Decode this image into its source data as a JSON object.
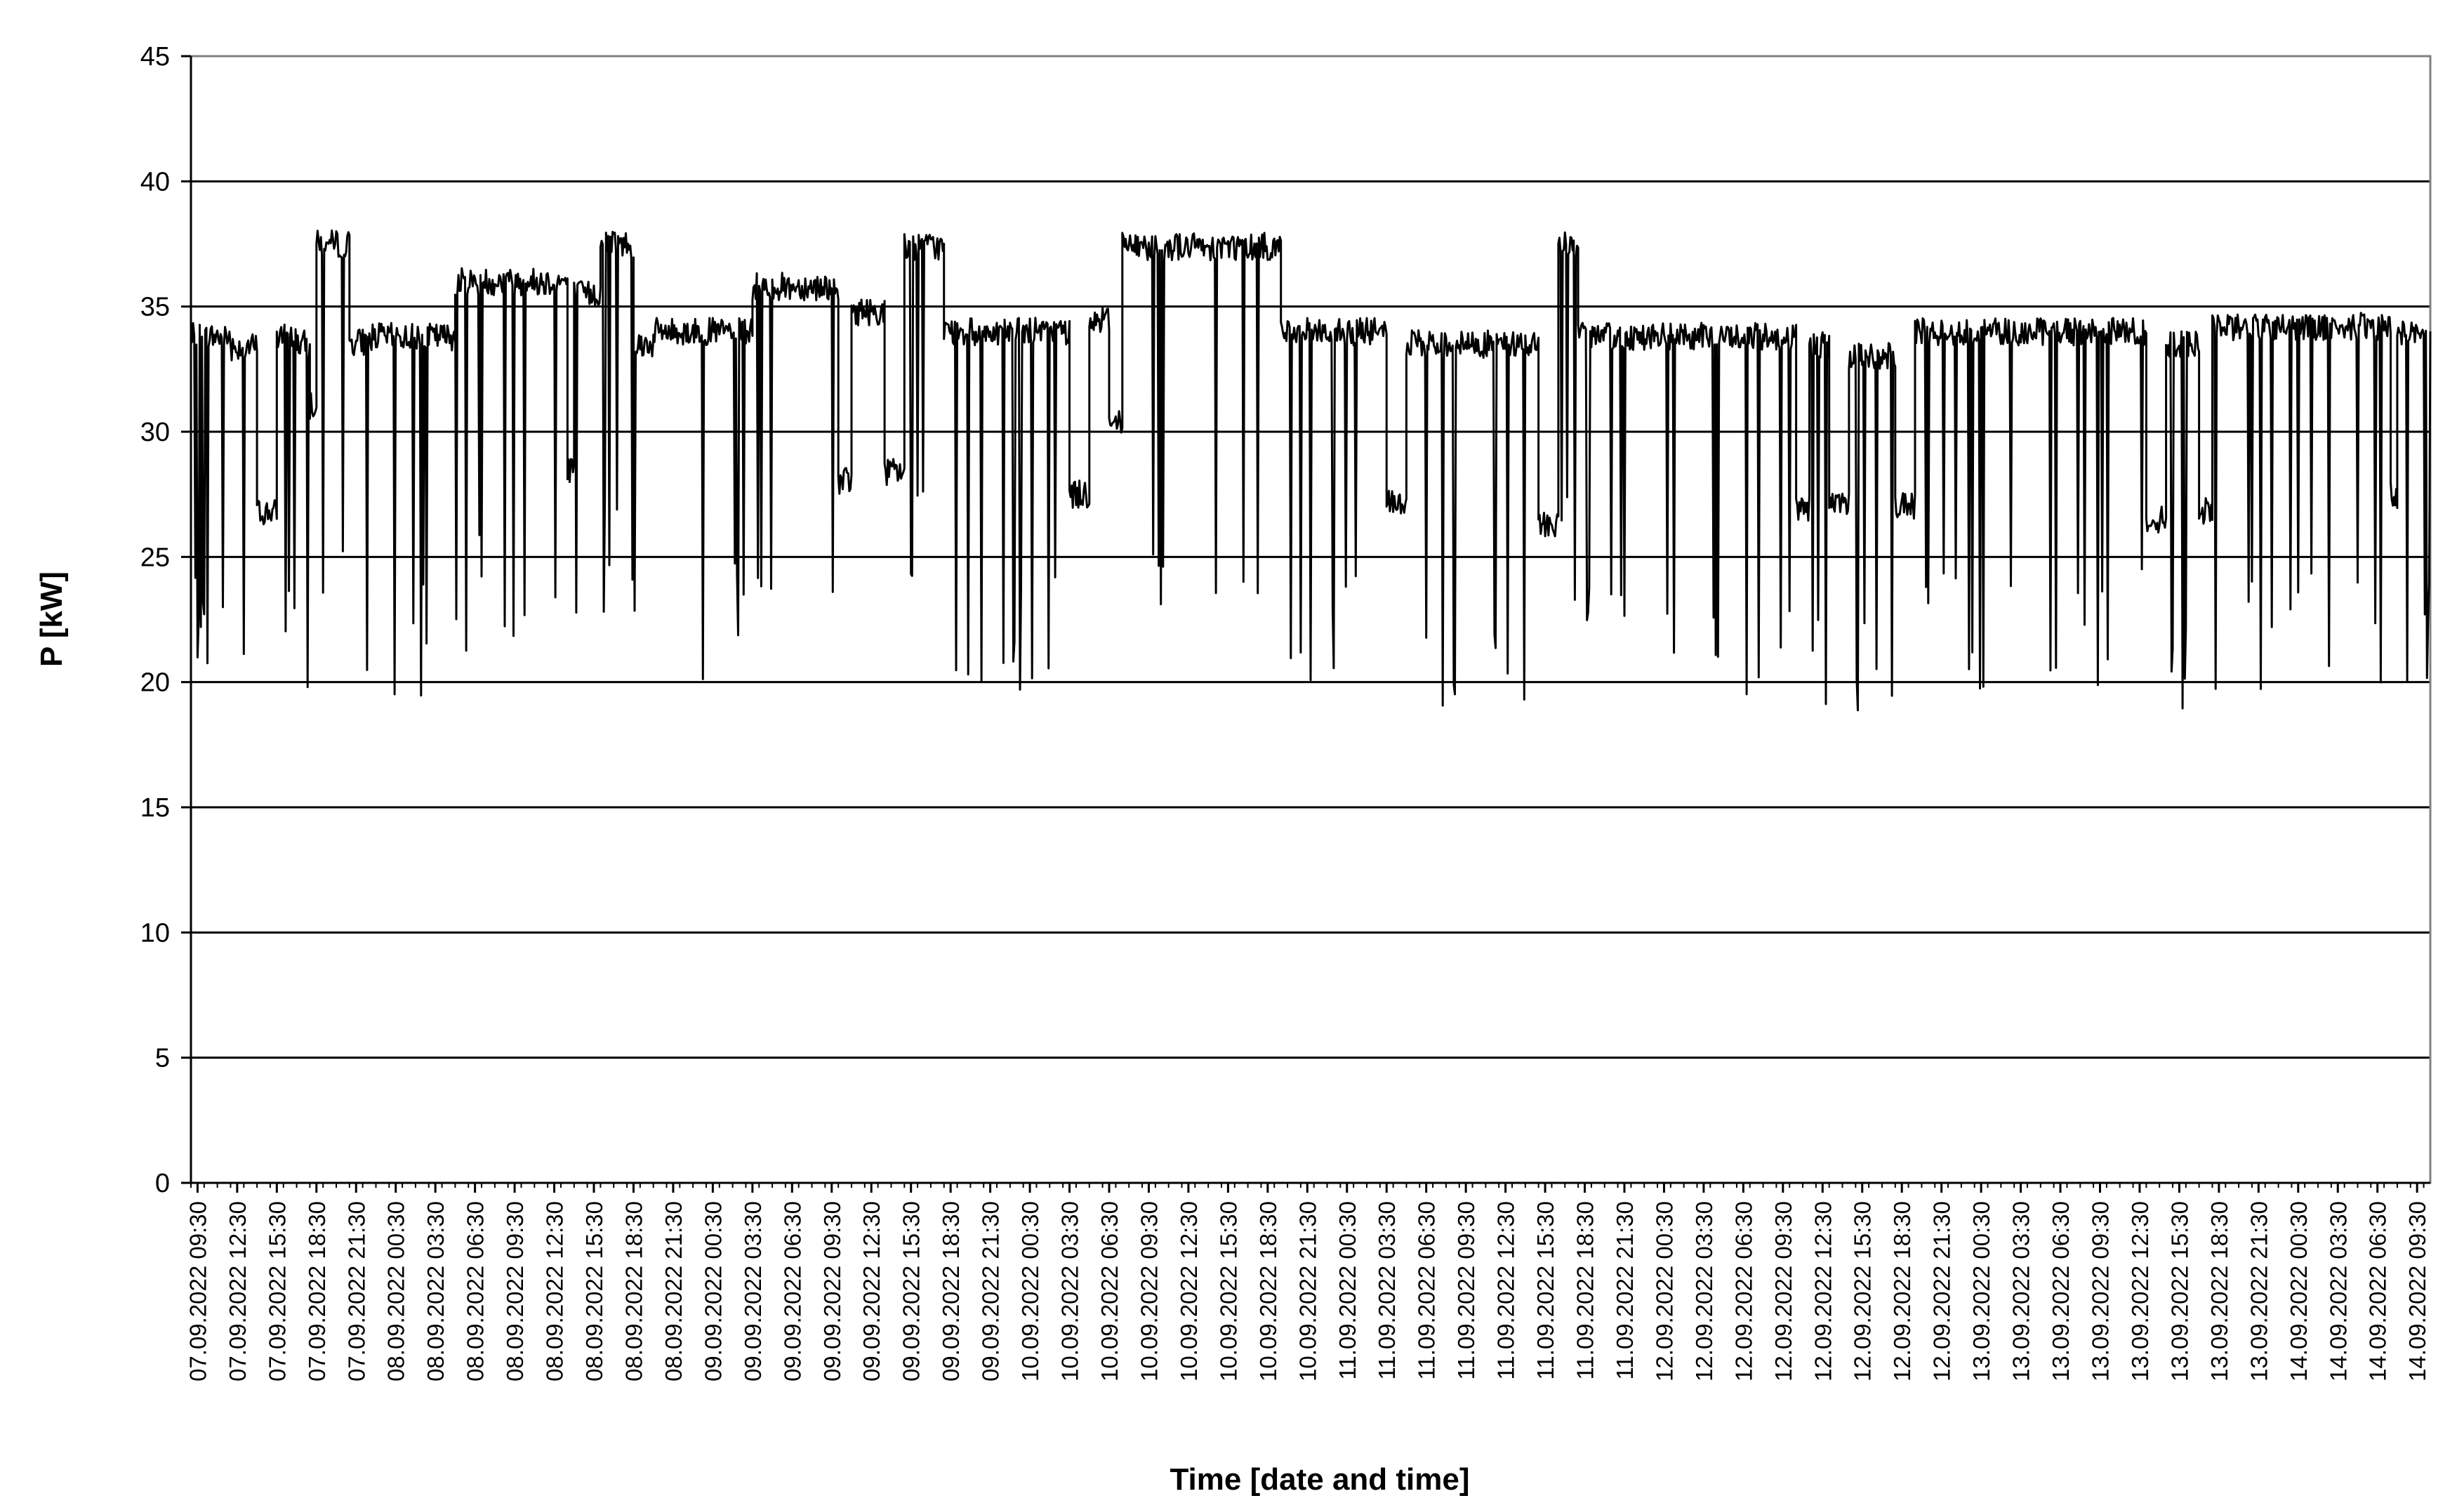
{
  "chart_data": {
    "type": "line",
    "xlabel": "Time [date and time]",
    "ylabel": "P [kW]",
    "ylim": [
      0,
      45
    ],
    "yticks": [
      0,
      5,
      10,
      15,
      20,
      25,
      30,
      35,
      40,
      45
    ],
    "grid": "horizontal",
    "legend": "none",
    "line_color": "#000000",
    "xtick_labels": [
      "07.09.2022 09:30",
      "07.09.2022 12:30",
      "07.09.2022 15:30",
      "07.09.2022 18:30",
      "07.09.2022 21:30",
      "08.09.2022 00:30",
      "08.09.2022 03:30",
      "08.09.2022 06:30",
      "08.09.2022 09:30",
      "08.09.2022 12:30",
      "08.09.2022 15:30",
      "08.09.2022 18:30",
      "08.09.2022 21:30",
      "09.09.2022 00:30",
      "09.09.2022 03:30",
      "09.09.2022 06:30",
      "09.09.2022 09:30",
      "09.09.2022 12:30",
      "09.09.2022 15:30",
      "09.09.2022 18:30",
      "09.09.2022 21:30",
      "10.09.2022 00:30",
      "10.09.2022 03:30",
      "10.09.2022 06:30",
      "10.09.2022 09:30",
      "10.09.2022 12:30",
      "10.09.2022 15:30",
      "10.09.2022 18:30",
      "10.09.2022 21:30",
      "11.09.2022 00:30",
      "11.09.2022 03:30",
      "11.09.2022 06:30",
      "11.09.2022 09:30",
      "11.09.2022 12:30",
      "11.09.2022 15:30",
      "11.09.2022 18:30",
      "11.09.2022 21:30",
      "12.09.2022 00:30",
      "12.09.2022 03:30",
      "12.09.2022 06:30",
      "12.09.2022 09:30",
      "12.09.2022 12:30",
      "12.09.2022 15:30",
      "12.09.2022 18:30",
      "12.09.2022 21:30",
      "13.09.2022 00:30",
      "13.09.2022 03:30",
      "13.09.2022 06:30",
      "13.09.2022 09:30",
      "13.09.2022 12:30",
      "13.09.2022 15:30",
      "13.09.2022 18:30",
      "13.09.2022 21:30",
      "14.09.2022 00:30",
      "14.09.2022 03:30",
      "14.09.2022 06:30",
      "14.09.2022 09:30"
    ],
    "xlim": [
      "07.09.2022 09:00",
      "14.09.2022 10:30"
    ],
    "series": [
      {
        "values_note": "hourly segments: [start, end, level kW, dip minimum kW]",
        "segments": [
          [
            "07.09.2022 09:00",
            "07.09.2022 12:00",
            33.8,
            19.0
          ],
          [
            "07.09.2022 12:00",
            "07.09.2022 14:00",
            33.4,
            19.0
          ],
          [
            "07.09.2022 14:00",
            "07.09.2022 15:30",
            26.8,
            26.5
          ],
          [
            "07.09.2022 15:30",
            "07.09.2022 17:00",
            33.8,
            19.0
          ],
          [
            "07.09.2022 17:00",
            "07.09.2022 18:00",
            33.5,
            19.5
          ],
          [
            "07.09.2022 18:00",
            "07.09.2022 18:30",
            31.0,
            30.8
          ],
          [
            "07.09.2022 18:30",
            "07.09.2022 21:00",
            37.5,
            23.0
          ],
          [
            "07.09.2022 21:00",
            "07.09.2022 22:30",
            33.6,
            19.4
          ],
          [
            "07.09.2022 22:30",
            "08.09.2022 05:00",
            33.8,
            19.3
          ],
          [
            "08.09.2022 05:00",
            "08.09.2022 13:30",
            36.0,
            21.0
          ],
          [
            "08.09.2022 13:30",
            "08.09.2022 14:00",
            28.5,
            28.0
          ],
          [
            "08.09.2022 14:00",
            "08.09.2022 16:00",
            35.5,
            20.5
          ],
          [
            "08.09.2022 16:00",
            "08.09.2022 18:30",
            37.5,
            22.5
          ],
          [
            "08.09.2022 18:30",
            "08.09.2022 20:00",
            33.5,
            18.8
          ],
          [
            "08.09.2022 20:00",
            "09.09.2022 03:30",
            34.0,
            19.8
          ],
          [
            "09.09.2022 03:30",
            "09.09.2022 10:00",
            35.8,
            21.0
          ],
          [
            "09.09.2022 10:00",
            "09.09.2022 11:00",
            28.0,
            27.8
          ],
          [
            "09.09.2022 11:00",
            "09.09.2022 13:30",
            34.8,
            20.5
          ],
          [
            "09.09.2022 13:30",
            "09.09.2022 15:00",
            28.4,
            28.2
          ],
          [
            "09.09.2022 15:00",
            "09.09.2022 18:00",
            37.4,
            22.5
          ],
          [
            "09.09.2022 18:00",
            "10.09.2022 03:30",
            34.0,
            19.6
          ],
          [
            "10.09.2022 03:30",
            "10.09.2022 05:00",
            27.5,
            27.3
          ],
          [
            "10.09.2022 05:00",
            "10.09.2022 06:30",
            34.5,
            20.0
          ],
          [
            "10.09.2022 06:30",
            "10.09.2022 07:30",
            30.5,
            21.5
          ],
          [
            "10.09.2022 07:30",
            "10.09.2022 19:30",
            37.4,
            22.5
          ],
          [
            "10.09.2022 19:30",
            "11.09.2022 03:30",
            34.0,
            19.5
          ],
          [
            "11.09.2022 03:30",
            "11.09.2022 05:00",
            27.2,
            27.0
          ],
          [
            "11.09.2022 05:00",
            "11.09.2022 15:00",
            33.5,
            18.2
          ],
          [
            "11.09.2022 15:00",
            "11.09.2022 16:30",
            26.3,
            26.0
          ],
          [
            "11.09.2022 16:30",
            "11.09.2022 18:00",
            37.5,
            23.0
          ],
          [
            "11.09.2022 18:00",
            "12.09.2022 10:30",
            33.8,
            19.0
          ],
          [
            "12.09.2022 10:30",
            "12.09.2022 11:30",
            27.0,
            26.8
          ],
          [
            "12.09.2022 11:30",
            "12.09.2022 13:00",
            33.5,
            18.0
          ],
          [
            "12.09.2022 13:00",
            "12.09.2022 14:30",
            27.0,
            26.5
          ],
          [
            "12.09.2022 14:30",
            "12.09.2022 18:00",
            33.0,
            18.5
          ],
          [
            "12.09.2022 18:00",
            "12.09.2022 19:30",
            27.0,
            26.8
          ],
          [
            "12.09.2022 19:30",
            "13.09.2022 13:00",
            34.0,
            19.5
          ],
          [
            "13.09.2022 13:00",
            "13.09.2022 14:30",
            26.5,
            26.0
          ],
          [
            "13.09.2022 14:30",
            "13.09.2022 17:00",
            33.5,
            18.5
          ],
          [
            "13.09.2022 17:00",
            "13.09.2022 18:00",
            26.8,
            26.5
          ],
          [
            "13.09.2022 18:00",
            "14.09.2022 07:30",
            34.2,
            19.5
          ],
          [
            "14.09.2022 07:30",
            "14.09.2022 08:00",
            27.5,
            27.3
          ],
          [
            "14.09.2022 08:00",
            "14.09.2022 10:30",
            34.0,
            19.8
          ]
        ]
      }
    ]
  }
}
